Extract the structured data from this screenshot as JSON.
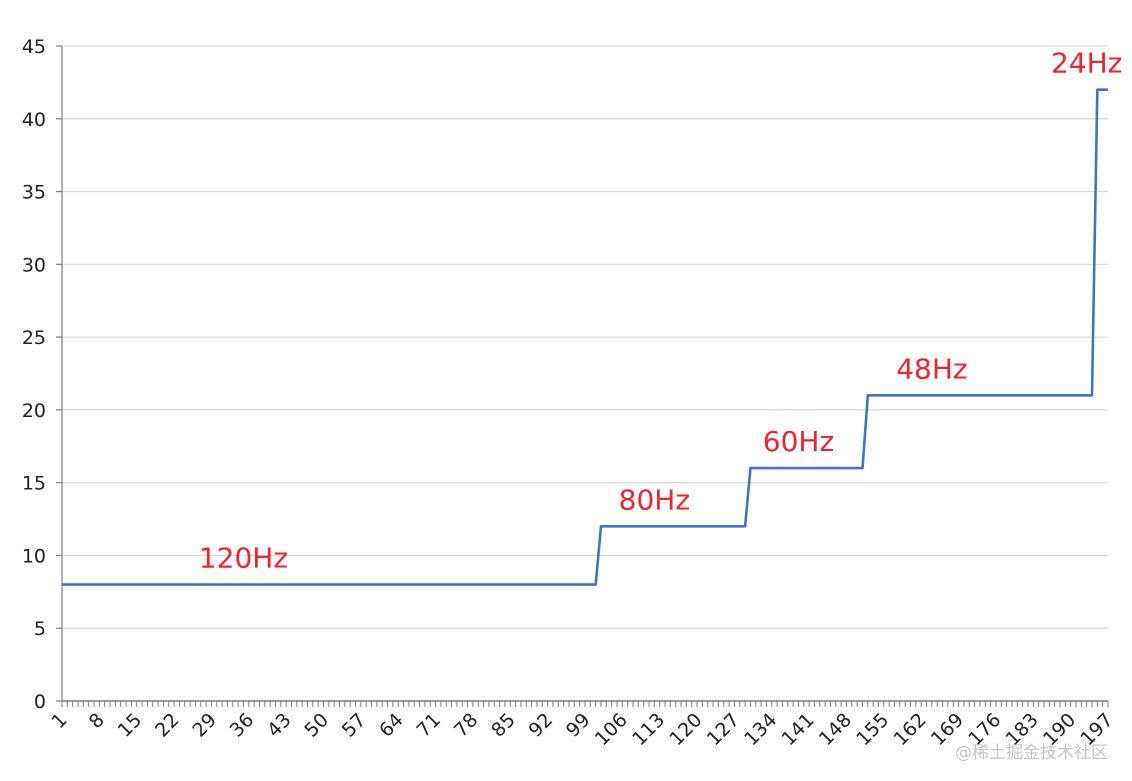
{
  "chart_data": {
    "type": "line",
    "title": "",
    "xlabel": "",
    "ylabel": "",
    "x_range": [
      1,
      197
    ],
    "x_tick_labels": [
      "1",
      "8",
      "15",
      "22",
      "29",
      "36",
      "43",
      "50",
      "57",
      "64",
      "71",
      "78",
      "85",
      "92",
      "99",
      "106",
      "113",
      "120",
      "127",
      "134",
      "141",
      "148",
      "155",
      "162",
      "169",
      "176",
      "183",
      "190",
      "197"
    ],
    "ylim": [
      0,
      45
    ],
    "y_ticks": [
      0,
      5,
      10,
      15,
      20,
      25,
      30,
      35,
      40,
      45
    ],
    "grid": "horizontal",
    "line_color": "#4472c4",
    "annotation_color": "#e8262f",
    "series": [
      {
        "points": [
          [
            1,
            8
          ],
          [
            101,
            8
          ],
          [
            102,
            12
          ],
          [
            129,
            12
          ],
          [
            130,
            16
          ],
          [
            151,
            16
          ],
          [
            152,
            21
          ],
          [
            194,
            21
          ],
          [
            195,
            42
          ],
          [
            197,
            42
          ]
        ]
      }
    ],
    "annotations": [
      {
        "text": "120Hz",
        "x": 35,
        "y": 8
      },
      {
        "text": "80Hz",
        "x": 112,
        "y": 12
      },
      {
        "text": "60Hz",
        "x": 139,
        "y": 16
      },
      {
        "text": "48Hz",
        "x": 164,
        "y": 21
      },
      {
        "text": "24Hz",
        "x": 193,
        "y": 42
      }
    ]
  },
  "watermark": "@稀土掘金技术社区"
}
